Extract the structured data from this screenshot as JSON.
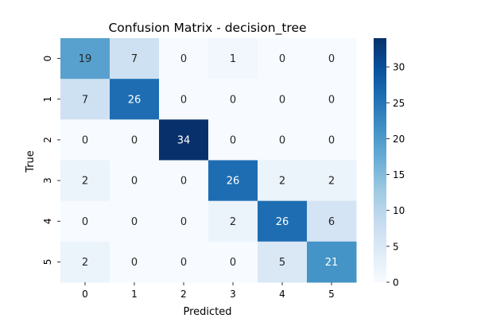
{
  "chart_data": {
    "type": "heatmap",
    "title": "Confusion Matrix - decision_tree",
    "xlabel": "Predicted",
    "ylabel": "True",
    "x_categories": [
      "0",
      "1",
      "2",
      "3",
      "4",
      "5"
    ],
    "y_categories": [
      "0",
      "1",
      "2",
      "3",
      "4",
      "5"
    ],
    "values": [
      [
        19,
        7,
        0,
        1,
        0,
        0
      ],
      [
        7,
        26,
        0,
        0,
        0,
        0
      ],
      [
        0,
        0,
        34,
        0,
        0,
        0
      ],
      [
        2,
        0,
        0,
        26,
        2,
        2
      ],
      [
        0,
        0,
        0,
        2,
        26,
        6
      ],
      [
        2,
        0,
        0,
        0,
        5,
        21
      ]
    ],
    "vmin": 0,
    "vmax": 34,
    "colormap": "Blues",
    "colorbar": {
      "ticks": [
        0,
        5,
        10,
        15,
        20,
        25,
        30
      ],
      "tick_labels": [
        "0",
        "5",
        "10",
        "15",
        "20",
        "25",
        "30"
      ]
    },
    "grid": false,
    "legend": "colorbar-right"
  }
}
